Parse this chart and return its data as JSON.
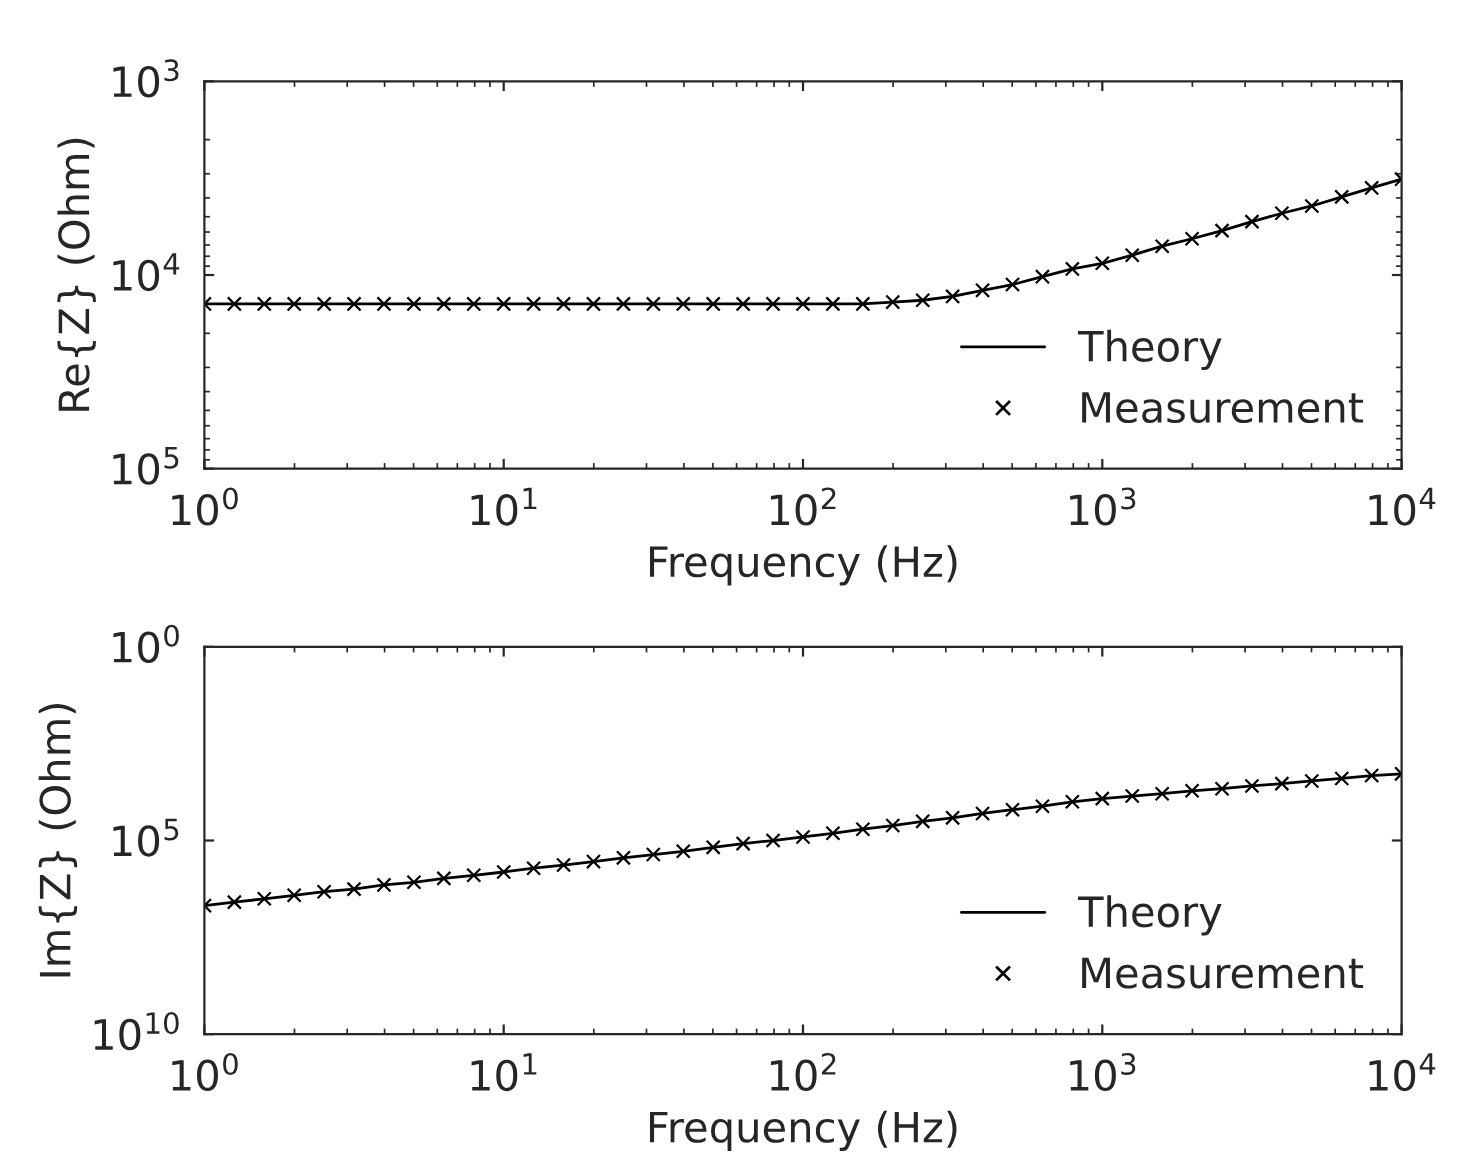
{
  "chart_data": [
    {
      "type": "line",
      "xlabel": "Frequency (Hz)",
      "ylabel": "Re{Z} (Ohm)",
      "log": "xy",
      "grid": false,
      "legend": "bottom right",
      "x": [
        1,
        1.259,
        1.585,
        1.995,
        2.512,
        3.162,
        3.981,
        5.012,
        6.31,
        7.943,
        10,
        12.59,
        15.85,
        19.95,
        25.12,
        31.62,
        39.81,
        50.12,
        63.1,
        79.43,
        100,
        125.9,
        158.5,
        199.5,
        251.2,
        316.2,
        398.1,
        501.2,
        631,
        794.3,
        1000,
        1259,
        1585,
        1995,
        2512,
        3162,
        3981,
        5012,
        6310,
        7943,
        10000
      ],
      "xlim": [
        1,
        10000
      ],
      "xticks": [
        {
          "value": 1,
          "label": "10$^{0}$"
        },
        {
          "value": 10,
          "label": "10$^{1}$"
        },
        {
          "value": 100,
          "label": "10$^{2}$"
        },
        {
          "value": 1000,
          "label": "10$^{3}$"
        },
        {
          "value": 10000,
          "label": "10$^{4}$"
        }
      ],
      "ylim": [
        100000,
        1000
      ],
      "yticks": [
        {
          "value": 1000,
          "label": "10$^{3}$"
        },
        {
          "value": 10000,
          "label": "10$^{4}$"
        },
        {
          "value": 100000,
          "label": "10$^{5}$"
        }
      ],
      "series": [
        {
          "name": "Theory",
          "color": "#000000",
          "line_style": "solid",
          "marker": "none",
          "values": [
            14100,
            14100,
            14100,
            14100,
            14100,
            14100,
            14100,
            14100,
            14100,
            14100,
            14100,
            14100,
            14100,
            14100,
            14100,
            14100,
            14100,
            14100,
            14100,
            14100,
            14100,
            14100,
            14100,
            13800,
            13500,
            12900,
            12000,
            11200,
            10200,
            9300,
            8700,
            7900,
            7100,
            6500,
            5900,
            5300,
            4800,
            4400,
            3950,
            3550,
            3200
          ]
        },
        {
          "name": "Measurement",
          "type": "scatter",
          "color": "#000000",
          "marker": "cross",
          "values": [
            14100,
            14100,
            14100,
            14100,
            14100,
            14100,
            14100,
            14100,
            14100,
            14100,
            14100,
            14100,
            14100,
            14100,
            14100,
            14100,
            14100,
            14100,
            14100,
            14100,
            14100,
            14100,
            14100,
            13800,
            13500,
            12900,
            12000,
            11200,
            10200,
            9300,
            8700,
            7900,
            7100,
            6500,
            5900,
            5300,
            4800,
            4400,
            3950,
            3550,
            3200
          ]
        }
      ]
    },
    {
      "type": "line",
      "xlabel": "Frequency (Hz)",
      "ylabel": "Im{Z} (Ohm)",
      "log": "xy",
      "grid": false,
      "legend": "bottom right",
      "x": [
        1,
        1.259,
        1.585,
        1.995,
        2.512,
        3.162,
        3.981,
        5.012,
        6.31,
        7.943,
        10,
        12.59,
        15.85,
        19.95,
        25.12,
        31.62,
        39.81,
        50.12,
        63.1,
        79.43,
        100,
        125.9,
        158.5,
        199.5,
        251.2,
        316.2,
        398.1,
        501.2,
        631,
        794.3,
        1000,
        1259,
        1585,
        1995,
        2512,
        3162,
        3981,
        5012,
        6310,
        7943,
        10000
      ],
      "xlim": [
        1,
        10000
      ],
      "xticks": [
        {
          "value": 1,
          "label": "10$^{0}$"
        },
        {
          "value": 10,
          "label": "10$^{1}$"
        },
        {
          "value": 100,
          "label": "10$^{2}$"
        },
        {
          "value": 1000,
          "label": "10$^{3}$"
        },
        {
          "value": 10000,
          "label": "10$^{4}$"
        }
      ],
      "ylim": [
        10000000000,
        1
      ],
      "yticks": [
        {
          "value": 1,
          "label": "10$^{0}$"
        },
        {
          "value": 100000,
          "label": "10$^{5}$"
        },
        {
          "value": 10000000000,
          "label": "10$^{10}$"
        }
      ],
      "series": [
        {
          "name": "Theory",
          "color": "#000000",
          "line_style": "solid",
          "marker": "none",
          "values": [
            4800000,
            3900000,
            3200000,
            2600000,
            2100000,
            1800000,
            1400000,
            1200000,
            950000,
            790000,
            650000,
            520000,
            430000,
            350000,
            280000,
            230000,
            190000,
            150000,
            120000,
            100000,
            81000,
            65000,
            51000,
            41000,
            32000,
            26000,
            20000,
            16000,
            13000,
            10000,
            8300,
            7100,
            6200,
            5200,
            4600,
            3900,
            3400,
            2900,
            2500,
            2100,
            1900
          ]
        },
        {
          "name": "Measurement",
          "type": "scatter",
          "color": "#000000",
          "marker": "cross",
          "values": [
            4800000,
            3900000,
            3200000,
            2600000,
            2100000,
            1800000,
            1400000,
            1200000,
            950000,
            790000,
            650000,
            520000,
            430000,
            350000,
            280000,
            230000,
            190000,
            150000,
            120000,
            100000,
            81000,
            65000,
            51000,
            41000,
            32000,
            26000,
            20000,
            16000,
            13000,
            10000,
            8300,
            7100,
            6200,
            5200,
            4600,
            3900,
            3400,
            2900,
            2500,
            2100,
            1900
          ]
        }
      ]
    }
  ]
}
